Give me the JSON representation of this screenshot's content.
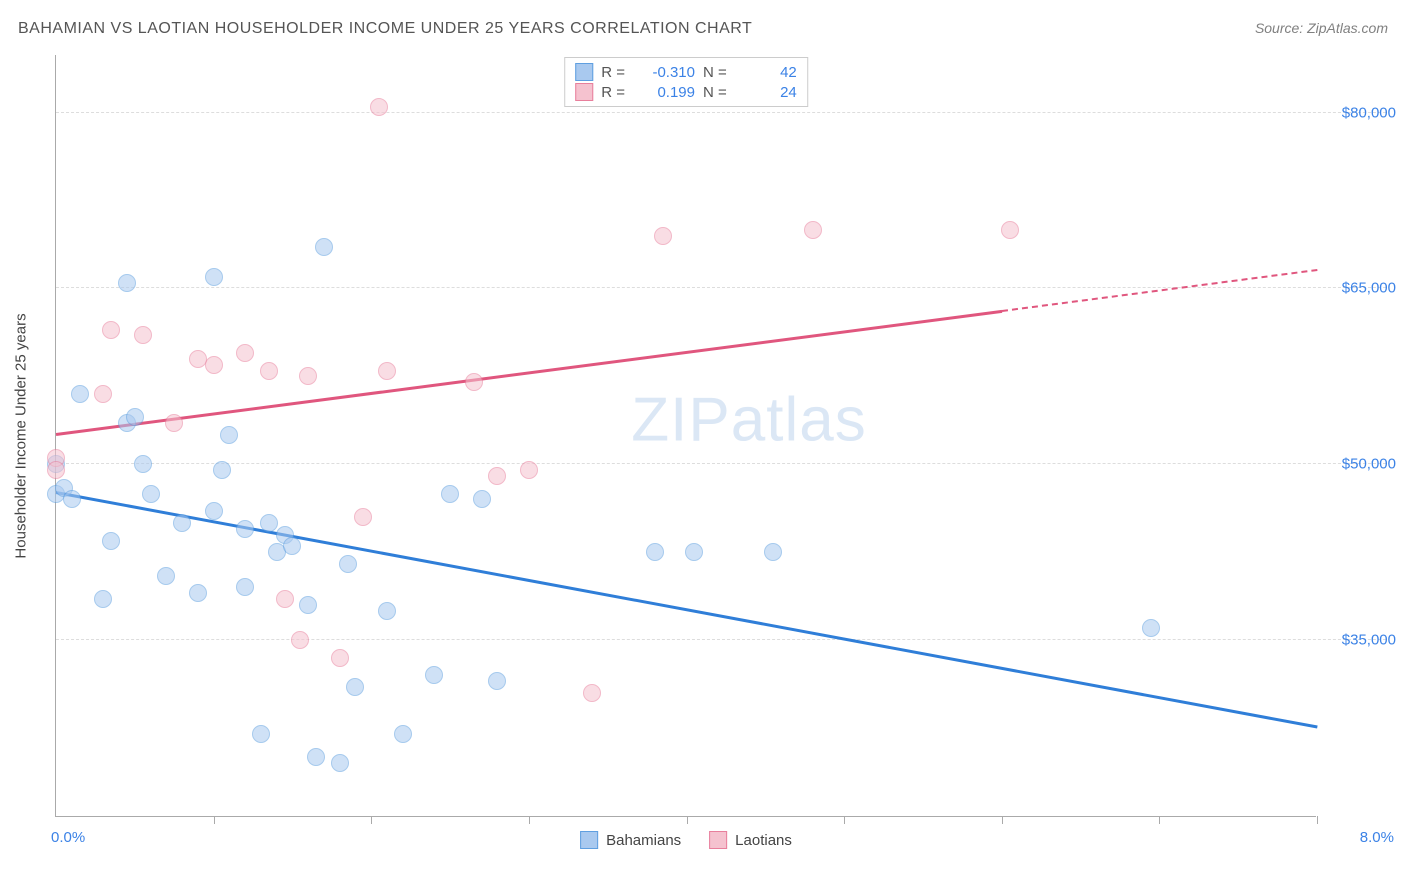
{
  "title": "BAHAMIAN VS LAOTIAN HOUSEHOLDER INCOME UNDER 25 YEARS CORRELATION CHART",
  "source_label": "Source: ZipAtlas.com",
  "watermark": "ZIPatlas",
  "chart": {
    "type": "scatter",
    "background_color": "#ffffff",
    "grid_color": "#dddddd",
    "axis_color": "#aaaaaa",
    "tick_label_color": "#3b82e6",
    "label_color": "#444444",
    "title_color": "#555555",
    "title_fontsize": 16,
    "label_fontsize": 15,
    "tick_fontsize": 15,
    "ylabel": "Householder Income Under 25 years",
    "xlim": [
      0.0,
      8.0
    ],
    "ylim": [
      20000,
      85000
    ],
    "ytick_step": 15000,
    "yticks": [
      35000,
      50000,
      65000,
      80000
    ],
    "ytick_labels": [
      "$35,000",
      "$50,000",
      "$65,000",
      "$80,000"
    ],
    "xticks": [
      0.0,
      1.0,
      2.0,
      3.0,
      4.0,
      5.0,
      6.0,
      7.0,
      8.0
    ],
    "xaxis_min_label": "0.0%",
    "xaxis_max_label": "8.0%",
    "marker_radius": 9,
    "marker_border_width": 1.2,
    "series": [
      {
        "name": "Bahamians",
        "fill_color": "#a9c9ef",
        "border_color": "#5f9fe0",
        "fill_opacity": 0.55,
        "r_value": "-0.310",
        "n_value": "42",
        "trend": {
          "x1": 0.0,
          "y1": 47500,
          "x2": 8.0,
          "y2": 27500,
          "solid_until_x": 8.0,
          "color": "#2f7ed8"
        },
        "points": [
          [
            0.0,
            50000
          ],
          [
            0.0,
            47500
          ],
          [
            0.05,
            48000
          ],
          [
            0.1,
            47000
          ],
          [
            0.3,
            38500
          ],
          [
            0.35,
            43500
          ],
          [
            0.45,
            65500
          ],
          [
            0.45,
            53500
          ],
          [
            0.5,
            54000
          ],
          [
            0.55,
            50000
          ],
          [
            0.6,
            47500
          ],
          [
            0.7,
            40500
          ],
          [
            0.8,
            45000
          ],
          [
            0.9,
            39000
          ],
          [
            1.0,
            66000
          ],
          [
            1.0,
            46000
          ],
          [
            1.05,
            49500
          ],
          [
            1.1,
            52500
          ],
          [
            1.2,
            44500
          ],
          [
            1.2,
            39500
          ],
          [
            1.3,
            27000
          ],
          [
            1.35,
            45000
          ],
          [
            1.4,
            42500
          ],
          [
            1.45,
            44000
          ],
          [
            1.5,
            43000
          ],
          [
            1.6,
            38000
          ],
          [
            1.65,
            25000
          ],
          [
            1.7,
            68500
          ],
          [
            1.8,
            24500
          ],
          [
            1.85,
            41500
          ],
          [
            1.9,
            31000
          ],
          [
            2.1,
            37500
          ],
          [
            2.2,
            27000
          ],
          [
            2.4,
            32000
          ],
          [
            2.5,
            47500
          ],
          [
            2.7,
            47000
          ],
          [
            2.8,
            31500
          ],
          [
            3.8,
            42500
          ],
          [
            4.05,
            42500
          ],
          [
            4.55,
            42500
          ],
          [
            6.95,
            36000
          ],
          [
            0.15,
            56000
          ]
        ]
      },
      {
        "name": "Laotians",
        "fill_color": "#f5c2cf",
        "border_color": "#e87f9c",
        "fill_opacity": 0.55,
        "r_value": "0.199",
        "n_value": "24",
        "trend": {
          "x1": 0.0,
          "y1": 52500,
          "x2": 8.0,
          "y2": 66500,
          "solid_until_x": 6.0,
          "color": "#e0567e"
        },
        "points": [
          [
            0.0,
            50500
          ],
          [
            0.0,
            49500
          ],
          [
            0.3,
            56000
          ],
          [
            0.35,
            61500
          ],
          [
            0.55,
            61000
          ],
          [
            0.75,
            53500
          ],
          [
            0.9,
            59000
          ],
          [
            1.0,
            58500
          ],
          [
            1.2,
            59500
          ],
          [
            1.35,
            58000
          ],
          [
            1.45,
            38500
          ],
          [
            1.55,
            35000
          ],
          [
            1.6,
            57500
          ],
          [
            1.8,
            33500
          ],
          [
            1.95,
            45500
          ],
          [
            2.05,
            80500
          ],
          [
            2.1,
            58000
          ],
          [
            2.65,
            57000
          ],
          [
            2.8,
            49000
          ],
          [
            3.0,
            49500
          ],
          [
            3.4,
            30500
          ],
          [
            3.85,
            69500
          ],
          [
            4.8,
            70000
          ],
          [
            6.05,
            70000
          ]
        ]
      }
    ],
    "legend_top": {
      "r_label": "R =",
      "n_label": "N ="
    },
    "legend_bottom": [
      {
        "label": "Bahamians",
        "fill": "#a9c9ef",
        "border": "#5f9fe0"
      },
      {
        "label": "Laotians",
        "fill": "#f5c2cf",
        "border": "#e87f9c"
      }
    ]
  }
}
